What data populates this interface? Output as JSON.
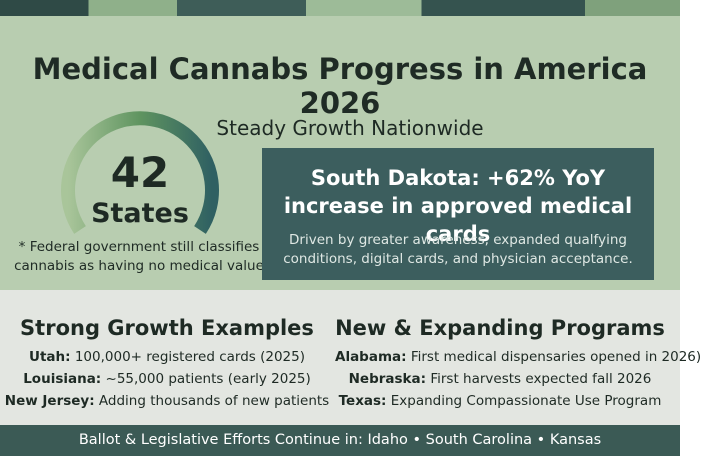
{
  "title": "Medical Cannabs Progress in America 2026",
  "subtitle": "Steady Growth Nationwide",
  "gauge": {
    "number": 42,
    "label": "States"
  },
  "footnote": "* Federal government still classifies cannabis as having no medical value",
  "highlight": {
    "heading": "South Dakota: +62% YoY increase in approved medical cards",
    "body": "Driven by greater awareness, expanded qualfying conditions, digital cards, and physician acceptance."
  },
  "columns": [
    {
      "heading": "Strong Growth Examples",
      "items": [
        {
          "label": "Utah:",
          "text": "100,000+ registered cards (2025)"
        },
        {
          "label": "Louisiana:",
          "text": "~55,000 patients (early 2025)"
        },
        {
          "label": "New Jersey:",
          "text": "Adding thousands of new patients"
        }
      ]
    },
    {
      "heading": "New & Expanding Programs",
      "items": [
        {
          "label": "Alabama:",
          "text": "First medical dispensaries opened in 2026)"
        },
        {
          "label": "Nebraska:",
          "text": "First harvests expected fall 2026"
        },
        {
          "label": "Texas:",
          "text": "Expanding Compassionate Use Program"
        }
      ]
    }
  ],
  "footer": {
    "lead": "Ballot & Legislative Efforts Continue in:",
    "states": "Idaho • South Carolina • Kansas"
  }
}
